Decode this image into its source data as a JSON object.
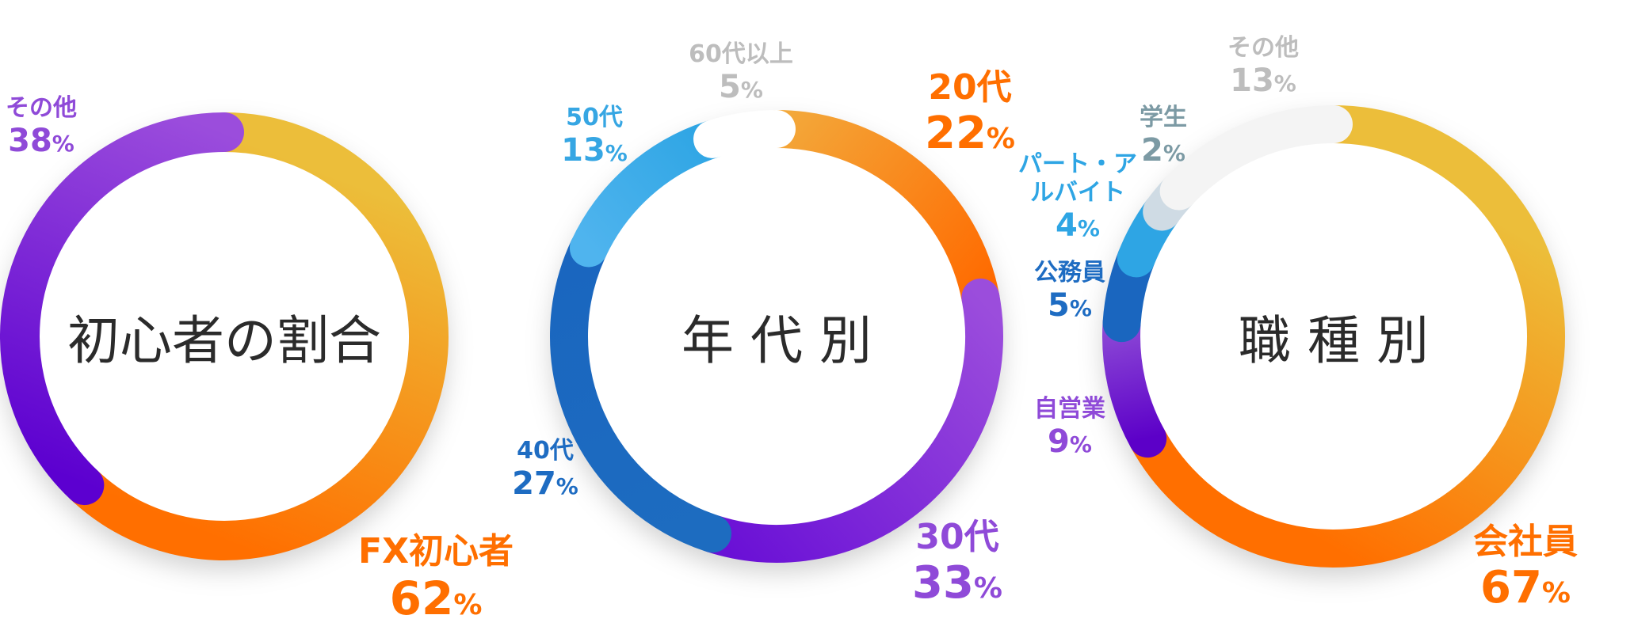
{
  "chart_data": [
    {
      "type": "donut",
      "center_label": "初心者の割合",
      "slices": [
        {
          "label": "FX初心者",
          "value": "62",
          "unit": "%",
          "color": "#ff7300",
          "grad": [
            "#ecbe3a",
            "#ff6f00"
          ]
        },
        {
          "label": "その他",
          "value": "38",
          "unit": "%",
          "color": "#8f4ad8",
          "grad": [
            "#5c00d0",
            "#9b4ddc"
          ]
        }
      ]
    },
    {
      "type": "donut",
      "center_label": "年 代 別",
      "slices": [
        {
          "label": "20代",
          "value": "22",
          "unit": "%",
          "color": "#ff6f00",
          "grad": [
            "#f3a83a",
            "#ff6a00"
          ]
        },
        {
          "label": "30代",
          "value": "33",
          "unit": "%",
          "color": "#8f4ad8",
          "grad": [
            "#9b4ddc",
            "#6a10d6"
          ]
        },
        {
          "label": "40代",
          "value": "27",
          "unit": "%",
          "color": "#1e6cc2",
          "grad": [
            "#1d6cc0",
            "#1a66bf"
          ]
        },
        {
          "label": "50代",
          "value": "13",
          "unit": "%",
          "color": "#36a6e3",
          "grad": [
            "#4fb4ee",
            "#2ea5e4"
          ]
        },
        {
          "label": "60代以上",
          "value": "5",
          "unit": "%",
          "color": "#bdbdbd",
          "grad": [
            "#ffffff",
            "#ffffff"
          ]
        }
      ]
    },
    {
      "type": "donut",
      "center_label": "職 種 別",
      "slices": [
        {
          "label": "会社員",
          "value": "67",
          "unit": "%",
          "color": "#ff7300",
          "grad": [
            "#ecbe3a",
            "#ff6f00"
          ]
        },
        {
          "label": "自営業",
          "value": "9",
          "unit": "%",
          "color": "#8f4ad8",
          "grad": [
            "#5c00c8",
            "#8d4ad6"
          ]
        },
        {
          "label": "公務員",
          "value": "5",
          "unit": "%",
          "color": "#1e6cc2",
          "grad": [
            "#1a66bf",
            "#1a66bf"
          ]
        },
        {
          "label": "パート・アルバイト",
          "value": "4",
          "unit": "%",
          "color": "#2ea5e4",
          "grad": [
            "#2ea5e4",
            "#2ea5e4"
          ]
        },
        {
          "label": "学生",
          "value": "2",
          "unit": "%",
          "color": "#7c9aa4",
          "grad": [
            "#cfdbe4",
            "#cfdbe4"
          ]
        },
        {
          "label": "その他",
          "value": "13",
          "unit": "%",
          "color": "#bdbdbd",
          "grad": [
            "#f4f4f4",
            "#f4f4f4"
          ]
        }
      ]
    }
  ]
}
